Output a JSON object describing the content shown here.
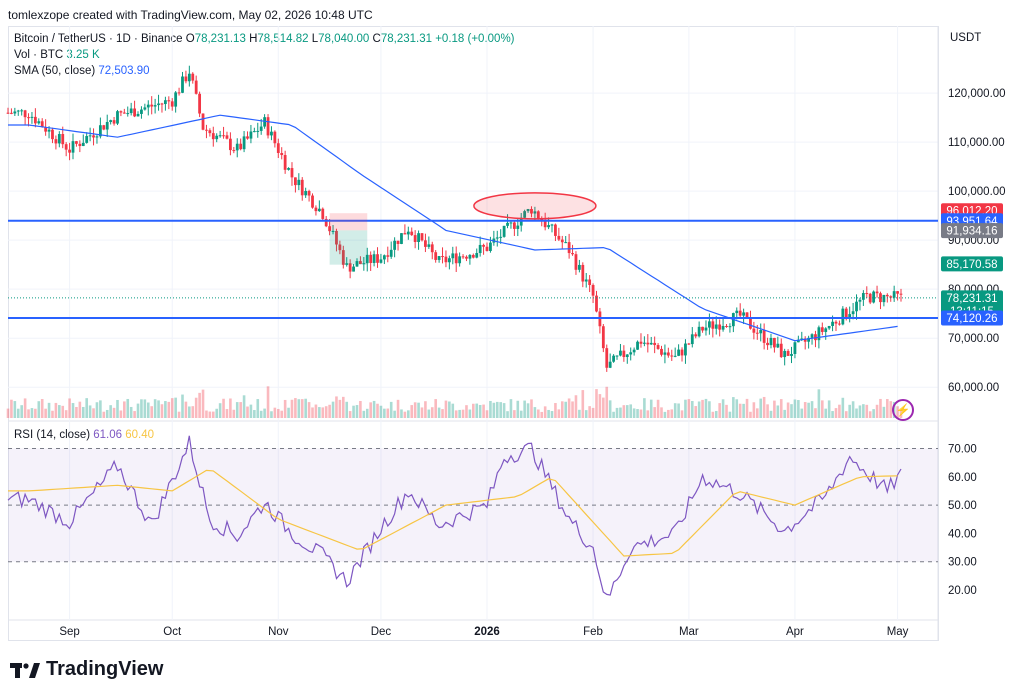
{
  "header": {
    "text": "tomlexzope created with TradingView.com, May 02, 2026 10:48 UTC"
  },
  "legend": {
    "symbol": "Bitcoin / TetherUS · 1D · Binance",
    "o_label": "O",
    "o": "78,231.13",
    "h_label": "H",
    "h": "78,514.82",
    "l_label": "L",
    "l": "78,040.00",
    "c_label": "C",
    "c": "78,231.31",
    "change": "+0.18 (+0.00%)",
    "vol_label": "Vol · BTC",
    "vol": "3.25 K",
    "sma_label": "SMA (50, close)",
    "sma": "72,503.90"
  },
  "rsi_legend": {
    "label": "RSI (14, close)",
    "rsi": "61.06",
    "ma": "60.40"
  },
  "currency": "USDT",
  "price_axis": [
    "120,000.00",
    "110,000.00",
    "100,000.00",
    "90,000.00",
    "80,000.00",
    "70,000.00",
    "60,000.00"
  ],
  "price_tags": [
    {
      "text": "96,012.20",
      "color": "#f23645",
      "price": 96012.2
    },
    {
      "text": "93,951.64",
      "color": "#2962ff",
      "price": 93951.64
    },
    {
      "text": "91,934.16",
      "color": "#787b86",
      "price": 91934.16
    },
    {
      "text": "85,170.58",
      "color": "#089981",
      "price": 85170.58
    },
    {
      "text": "78,231.31",
      "color": "#089981",
      "price": 78231.31,
      "sub": "13:11:15"
    },
    {
      "text": "74,120.26",
      "color": "#2962ff",
      "price": 74120.26
    }
  ],
  "rsi_axis": [
    "70.00",
    "60.00",
    "50.00",
    "40.00",
    "30.00",
    "20.00"
  ],
  "time_axis": [
    {
      "label": "Sep",
      "bold": false
    },
    {
      "label": "Oct",
      "bold": false
    },
    {
      "label": "Nov",
      "bold": false
    },
    {
      "label": "Dec",
      "bold": false
    },
    {
      "label": "2026",
      "bold": true
    },
    {
      "label": "Feb",
      "bold": false
    },
    {
      "label": "Mar",
      "bold": false
    },
    {
      "label": "Apr",
      "bold": false
    },
    {
      "label": "May",
      "bold": false
    }
  ],
  "brand": "TradingView",
  "colors": {
    "up": "#089981",
    "down": "#f23645",
    "sma": "#2962ff",
    "rsi": "#7e57c2",
    "rsi_ma": "#f7c544",
    "hline": "#2962ff"
  },
  "chart_data": [
    {
      "type": "candlestick",
      "title": "Bitcoin / TetherUS · 1D · Binance",
      "ylim": [
        55000,
        130000
      ],
      "horizontal_levels": [
        93951.64,
        74120.26
      ],
      "close_series_approx": [
        {
          "date": "2025-08-20",
          "close": 116000
        },
        {
          "date": "2025-09-01",
          "close": 108500
        },
        {
          "date": "2025-09-15",
          "close": 115500
        },
        {
          "date": "2025-10-01",
          "close": 118500
        },
        {
          "date": "2025-10-06",
          "close": 124500
        },
        {
          "date": "2025-10-10",
          "close": 113000
        },
        {
          "date": "2025-10-20",
          "close": 108500
        },
        {
          "date": "2025-10-28",
          "close": 114000
        },
        {
          "date": "2025-11-05",
          "close": 103000
        },
        {
          "date": "2025-11-14",
          "close": 95500
        },
        {
          "date": "2025-11-21",
          "close": 84500
        },
        {
          "date": "2025-12-01",
          "close": 86500
        },
        {
          "date": "2025-12-09",
          "close": 92500
        },
        {
          "date": "2025-12-18",
          "close": 85500
        },
        {
          "date": "2026-01-01",
          "close": 88500
        },
        {
          "date": "2026-01-14",
          "close": 96500
        },
        {
          "date": "2026-01-25",
          "close": 88000
        },
        {
          "date": "2026-02-01",
          "close": 78500
        },
        {
          "date": "2026-02-05",
          "close": 64000
        },
        {
          "date": "2026-02-15",
          "close": 69500
        },
        {
          "date": "2026-02-25",
          "close": 66000
        },
        {
          "date": "2026-03-05",
          "close": 72000
        },
        {
          "date": "2026-03-16",
          "close": 74500
        },
        {
          "date": "2026-03-29",
          "close": 66500
        },
        {
          "date": "2026-04-10",
          "close": 72000
        },
        {
          "date": "2026-04-22",
          "close": 78500
        },
        {
          "date": "2026-05-02",
          "close": 78231.31
        }
      ],
      "sma_50_approx": [
        {
          "date": "2025-08-20",
          "value": 113500
        },
        {
          "date": "2025-09-15",
          "value": 111000
        },
        {
          "date": "2025-10-15",
          "value": 115500
        },
        {
          "date": "2025-11-05",
          "value": 113500
        },
        {
          "date": "2025-11-25",
          "value": 103500
        },
        {
          "date": "2025-12-20",
          "value": 92000
        },
        {
          "date": "2026-01-15",
          "value": 88000
        },
        {
          "date": "2026-02-05",
          "value": 88500
        },
        {
          "date": "2026-03-05",
          "value": 76000
        },
        {
          "date": "2026-04-01",
          "value": 69500
        },
        {
          "date": "2026-05-02",
          "value": 72503.9
        }
      ]
    },
    {
      "type": "line",
      "title": "RSI (14, close)",
      "ylim": [
        10,
        75
      ],
      "bands": [
        70,
        50,
        30
      ],
      "series": [
        {
          "name": "RSI",
          "values": [
            {
              "date": "2025-08-20",
              "value": 52
            },
            {
              "date": "2025-09-01",
              "value": 44
            },
            {
              "date": "2025-09-15",
              "value": 64
            },
            {
              "date": "2025-09-25",
              "value": 43
            },
            {
              "date": "2025-10-06",
              "value": 72
            },
            {
              "date": "2025-10-12",
              "value": 45
            },
            {
              "date": "2025-10-20",
              "value": 39
            },
            {
              "date": "2025-10-28",
              "value": 51
            },
            {
              "date": "2025-11-05",
              "value": 40
            },
            {
              "date": "2025-11-14",
              "value": 32
            },
            {
              "date": "2025-11-21",
              "value": 23
            },
            {
              "date": "2025-12-01",
              "value": 42
            },
            {
              "date": "2025-12-09",
              "value": 55
            },
            {
              "date": "2025-12-18",
              "value": 43
            },
            {
              "date": "2026-01-01",
              "value": 50
            },
            {
              "date": "2026-01-06",
              "value": 67
            },
            {
              "date": "2026-01-14",
              "value": 70
            },
            {
              "date": "2026-01-25",
              "value": 45
            },
            {
              "date": "2026-02-01",
              "value": 35
            },
            {
              "date": "2026-02-05",
              "value": 16
            },
            {
              "date": "2026-02-12",
              "value": 35
            },
            {
              "date": "2026-02-25",
              "value": 40
            },
            {
              "date": "2026-03-05",
              "value": 60
            },
            {
              "date": "2026-03-16",
              "value": 54
            },
            {
              "date": "2026-03-29",
              "value": 41
            },
            {
              "date": "2026-04-10",
              "value": 53
            },
            {
              "date": "2026-04-17",
              "value": 67
            },
            {
              "date": "2026-04-28",
              "value": 55
            },
            {
              "date": "2026-05-02",
              "value": 61.06
            }
          ]
        },
        {
          "name": "RSI MA",
          "values": [
            {
              "date": "2025-08-20",
              "value": 55
            },
            {
              "date": "2025-09-15",
              "value": 57
            },
            {
              "date": "2025-10-01",
              "value": 55
            },
            {
              "date": "2025-10-12",
              "value": 63
            },
            {
              "date": "2025-11-01",
              "value": 45
            },
            {
              "date": "2025-11-25",
              "value": 34
            },
            {
              "date": "2025-12-20",
              "value": 50
            },
            {
              "date": "2026-01-10",
              "value": 53
            },
            {
              "date": "2026-01-20",
              "value": 60
            },
            {
              "date": "2026-02-10",
              "value": 32
            },
            {
              "date": "2026-02-25",
              "value": 33
            },
            {
              "date": "2026-03-15",
              "value": 55
            },
            {
              "date": "2026-04-01",
              "value": 50
            },
            {
              "date": "2026-04-20",
              "value": 60
            },
            {
              "date": "2026-05-02",
              "value": 60.4
            }
          ]
        }
      ]
    }
  ]
}
